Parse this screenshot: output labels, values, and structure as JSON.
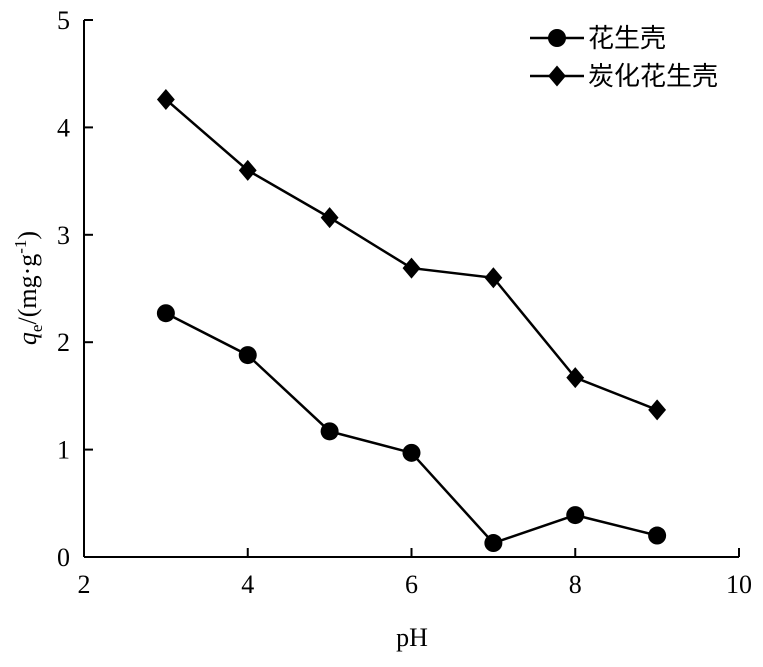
{
  "chart_data": {
    "type": "line",
    "xlabel": "pH",
    "ylabel": {
      "main": "q",
      "sub": "e",
      "unit": "/(mg·g",
      "sup": "-1",
      "close": ")"
    },
    "xlim": [
      2,
      10
    ],
    "ylim": [
      0,
      5
    ],
    "xticks": [
      "2",
      "4",
      "6",
      "8",
      "10"
    ],
    "yticks": [
      "0",
      "1",
      "2",
      "3",
      "4",
      "5"
    ],
    "grid": false,
    "legend_position": "top-right",
    "series": [
      {
        "name": "花生壳",
        "marker": "circle",
        "color": "#000000",
        "x": [
          3,
          4,
          5,
          6,
          7,
          8,
          9
        ],
        "y": [
          2.27,
          1.88,
          1.17,
          0.97,
          0.13,
          0.39,
          0.2
        ]
      },
      {
        "name": "炭化花生壳",
        "marker": "diamond",
        "color": "#000000",
        "x": [
          3,
          4,
          5,
          6,
          7,
          8,
          9
        ],
        "y": [
          4.26,
          3.6,
          3.16,
          2.69,
          2.6,
          1.67,
          1.37
        ]
      }
    ]
  }
}
